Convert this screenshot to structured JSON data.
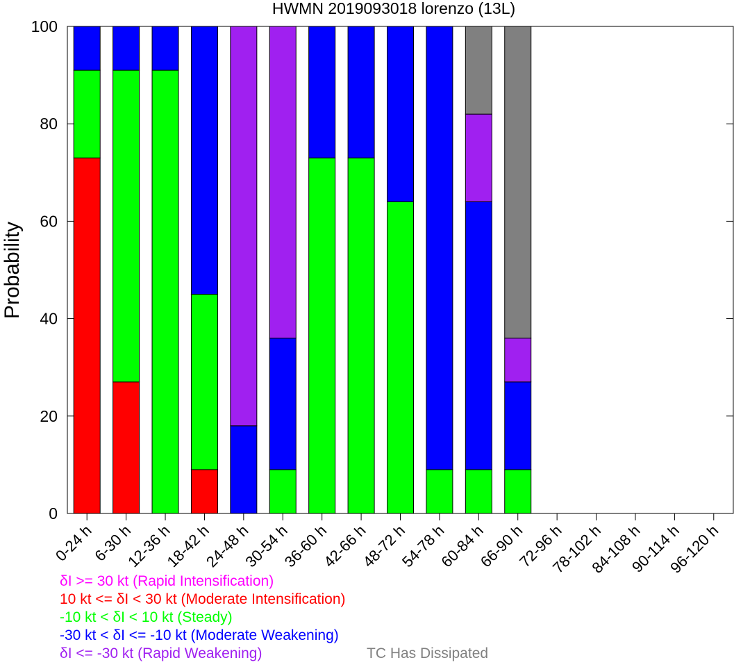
{
  "chart_data": {
    "type": "bar",
    "stacked": true,
    "title": "HWMN 2019093018 lorenzo (13L)",
    "xlabel": "",
    "ylabel": "Probability",
    "ylim": [
      0,
      100
    ],
    "yticks": [
      0,
      20,
      40,
      60,
      80,
      100
    ],
    "grid": false,
    "categories": [
      "0-24 h",
      "6-30 h",
      "12-36 h",
      "18-42 h",
      "24-48 h",
      "30-54 h",
      "36-60 h",
      "42-66 h",
      "48-72 h",
      "54-78 h",
      "60-84 h",
      "66-90 h",
      "72-96 h",
      "78-102 h",
      "84-108 h",
      "90-114 h",
      "96-120 h"
    ],
    "series": [
      {
        "key": "ri",
        "color": "#ff00ff",
        "values": [
          0,
          0,
          0,
          0,
          0,
          0,
          0,
          0,
          0,
          0,
          0,
          0,
          0,
          0,
          0,
          0,
          0
        ]
      },
      {
        "key": "mi",
        "color": "#ff0000",
        "values": [
          73,
          27,
          0,
          9,
          0,
          0,
          0,
          0,
          0,
          0,
          0,
          0,
          0,
          0,
          0,
          0,
          0
        ]
      },
      {
        "key": "steady",
        "color": "#00ff00",
        "values": [
          18,
          64,
          91,
          36,
          0,
          9,
          73,
          73,
          64,
          9,
          9,
          9,
          0,
          0,
          0,
          0,
          0
        ]
      },
      {
        "key": "mw",
        "color": "#0000ff",
        "values": [
          9,
          9,
          9,
          55,
          18,
          27,
          27,
          27,
          36,
          91,
          55,
          18,
          0,
          0,
          0,
          0,
          0
        ]
      },
      {
        "key": "rw",
        "color": "#a020f0",
        "values": [
          0,
          0,
          0,
          0,
          82,
          64,
          0,
          0,
          0,
          0,
          18,
          9,
          0,
          0,
          0,
          0,
          0
        ]
      },
      {
        "key": "dissipated",
        "color": "#808080",
        "values": [
          0,
          0,
          0,
          0,
          0,
          0,
          0,
          0,
          0,
          0,
          18,
          64,
          0,
          0,
          0,
          0,
          0
        ]
      }
    ],
    "legend": [
      {
        "text": "δI >= 30 kt (Rapid Intensification)",
        "color": "#ff00ff"
      },
      {
        "text": "10 kt <= δI < 30 kt (Moderate Intensification)",
        "color": "#ff0000"
      },
      {
        "text": "-10 kt < δI < 10 kt (Steady)",
        "color": "#00ff00"
      },
      {
        "text": "-30 kt < δI <= -10 kt (Moderate Weakening)",
        "color": "#0000ff"
      },
      {
        "text": "δI <= -30 kt (Rapid Weakening)",
        "color": "#a020f0"
      },
      {
        "text": "TC Has Dissipated",
        "color": "#808080"
      }
    ]
  }
}
